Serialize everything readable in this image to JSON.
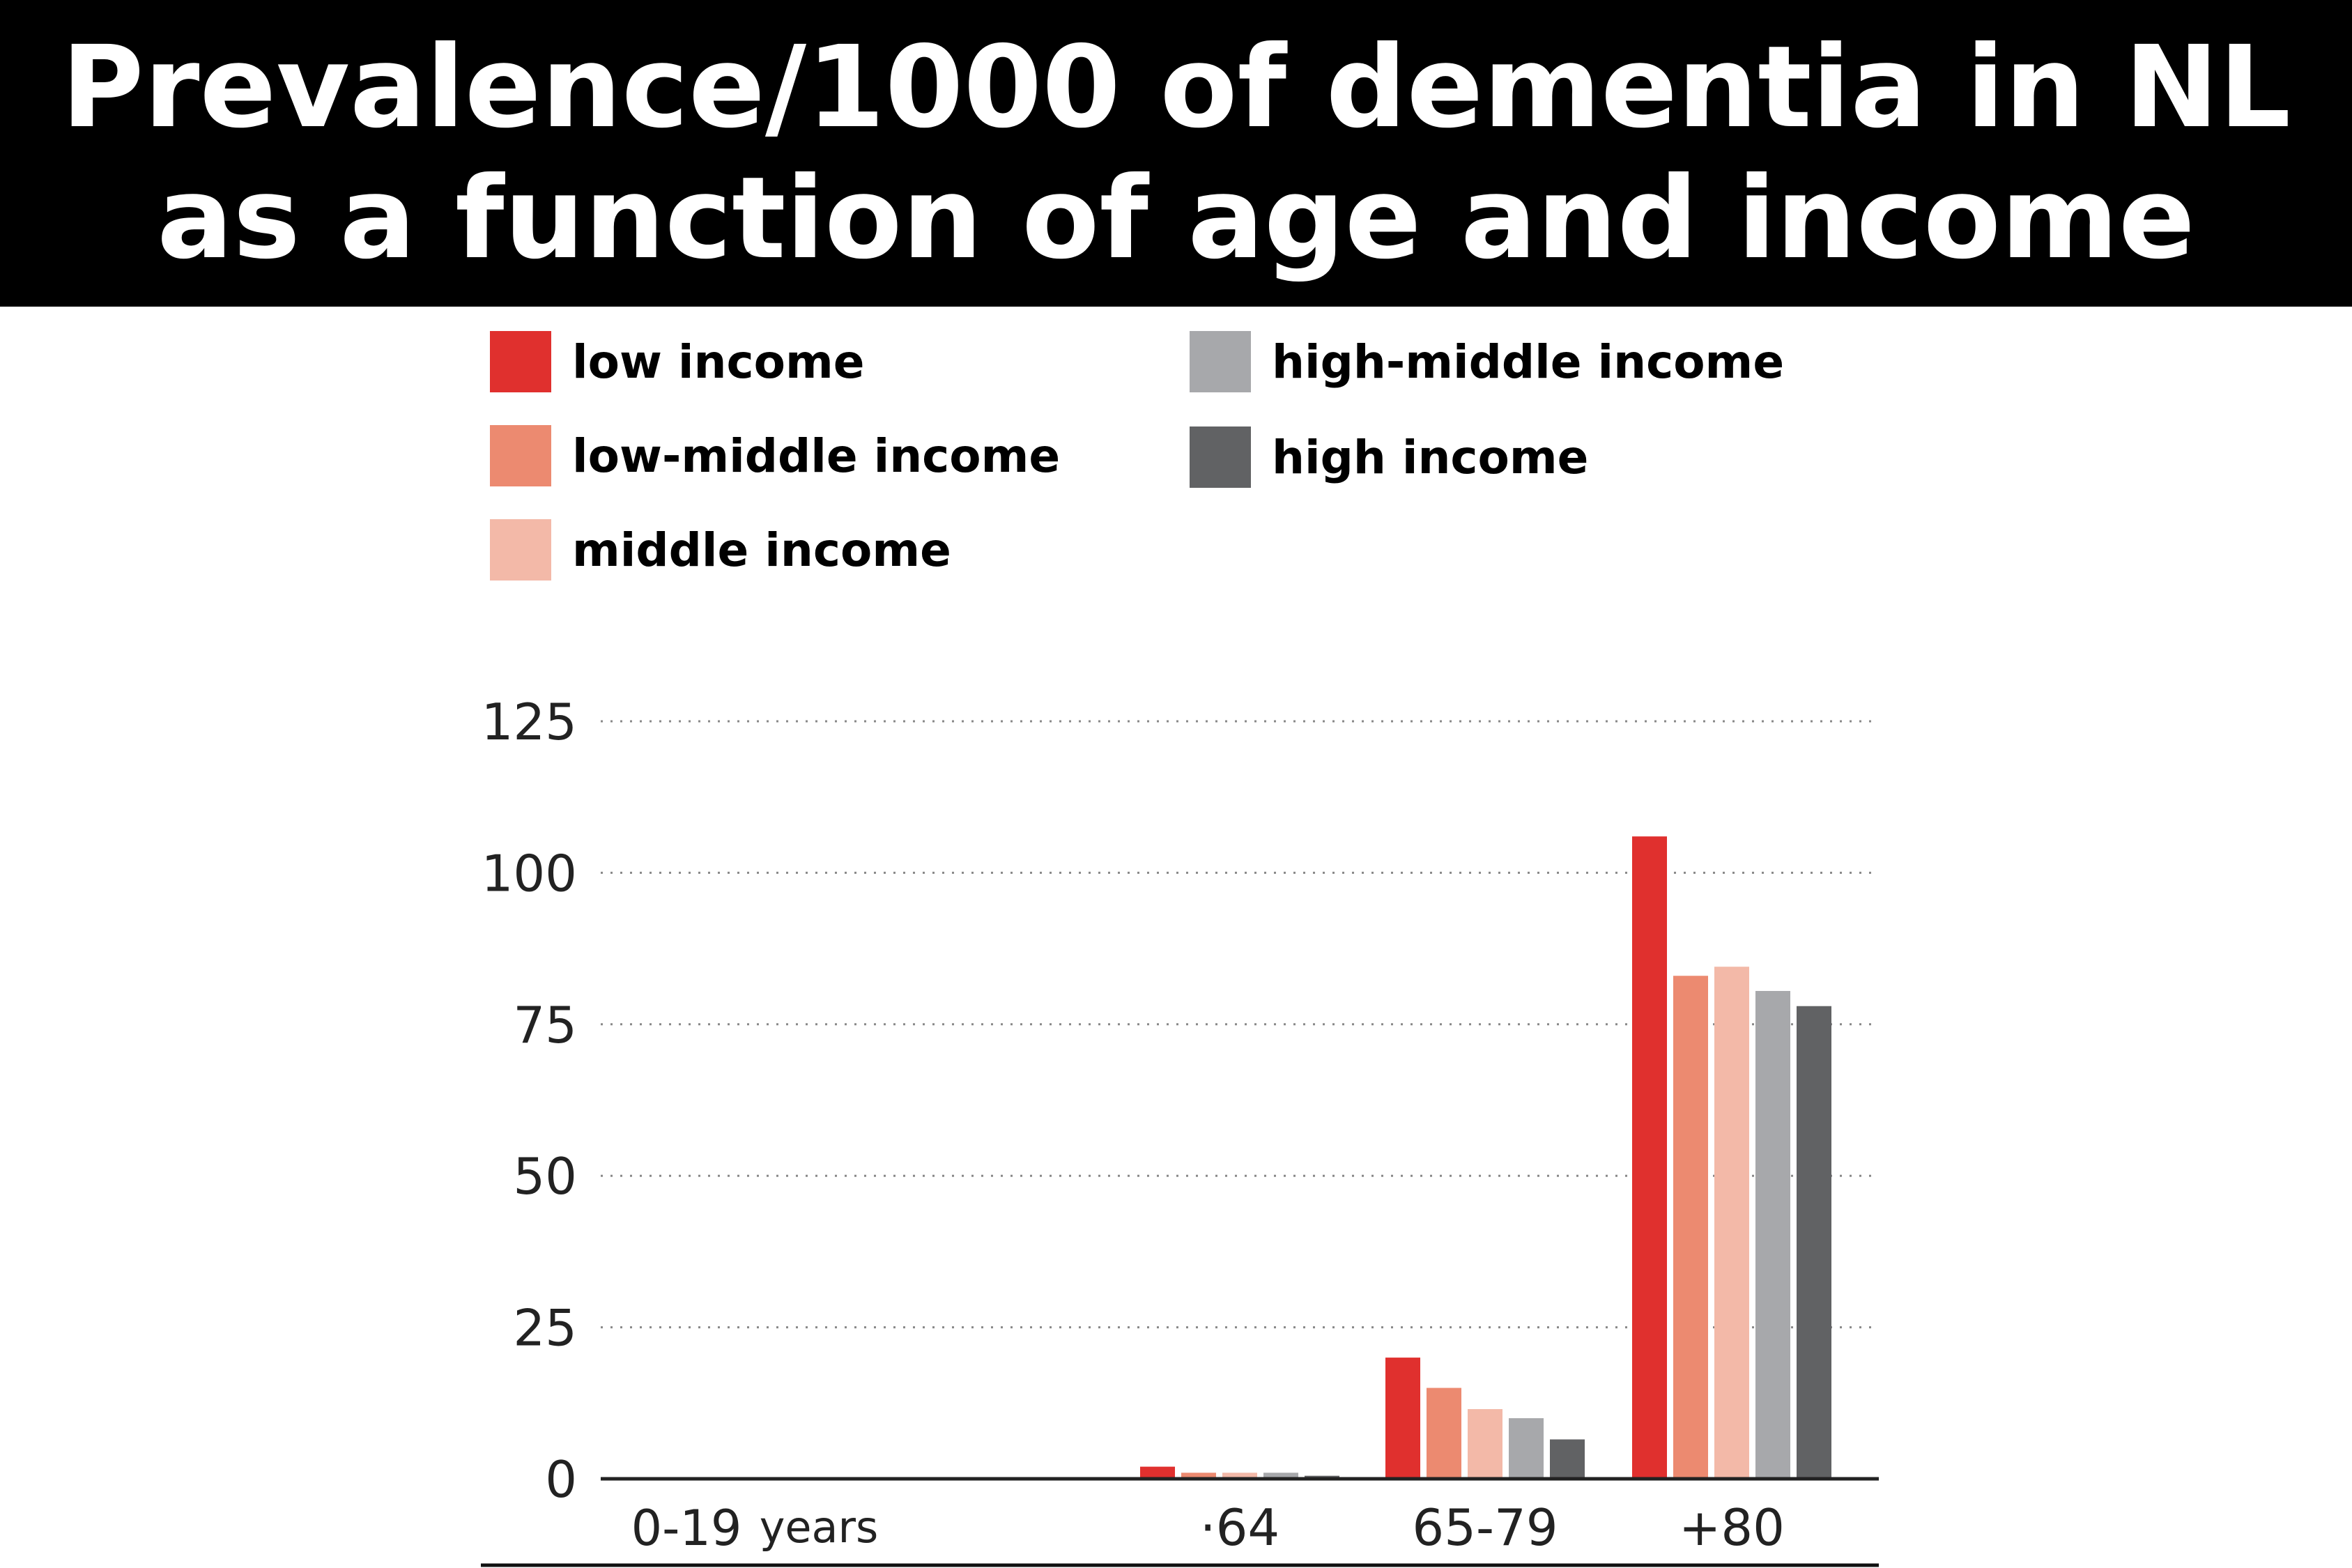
{
  "title": {
    "line1": "Prevalence/1000 of dementia in NL",
    "line2": "as a function of age and income"
  },
  "legend": [
    {
      "label": "low income",
      "color": "#e0302e"
    },
    {
      "label": "low-middle income",
      "color": "#ec8a70"
    },
    {
      "label": "middle income",
      "color": "#f3b9a8"
    },
    {
      "label": "high-middle income",
      "color": "#a7a8ab"
    },
    {
      "label": "high income",
      "color": "#616264"
    }
  ],
  "chart_data": {
    "type": "bar",
    "categories": [
      "·64",
      "65-79",
      "+80"
    ],
    "category_labels_extra": [
      "0-19",
      "years"
    ],
    "series": [
      {
        "name": "low income",
        "color": "#e0302e",
        "values": [
          2,
          20,
          106
        ]
      },
      {
        "name": "low-middle income",
        "color": "#ec8a70",
        "values": [
          1,
          15,
          83
        ]
      },
      {
        "name": "middle income",
        "color": "#f3b9a8",
        "values": [
          1,
          11.5,
          84.5
        ]
      },
      {
        "name": "high-middle income",
        "color": "#a7a8ab",
        "values": [
          1,
          10,
          80.5
        ]
      },
      {
        "name": "high income",
        "color": "#616264",
        "values": [
          0.5,
          6.5,
          78
        ]
      }
    ],
    "ylim": [
      0,
      125
    ],
    "yticks": [
      0,
      25,
      50,
      75,
      100,
      125
    ],
    "grid": true,
    "legend_position": "top"
  }
}
